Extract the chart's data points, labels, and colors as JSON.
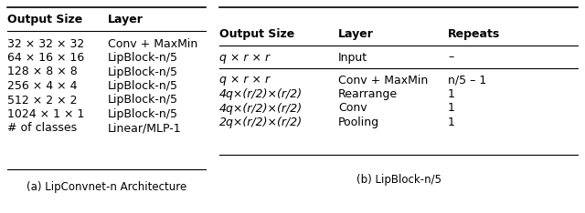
{
  "table_a": {
    "caption": "(a) LipConvnet-n Architecture",
    "headers": [
      "Output Size",
      "Layer"
    ],
    "rows": [
      [
        "32 × 32 × 32",
        "Conv + MaxMin"
      ],
      [
        "64 × 16 × 16",
        "LipBlock-n/5"
      ],
      [
        "128 × 8 × 8",
        "LipBlock-n/5"
      ],
      [
        "256 × 4 × 4",
        "LipBlock-n/5"
      ],
      [
        "512 × 2 × 2",
        "LipBlock-n/5"
      ],
      [
        "1024 × 1 × 1",
        "LipBlock-n/5"
      ],
      [
        "# of classes",
        "Linear/MLP-1"
      ]
    ]
  },
  "table_b": {
    "caption": "(b) LipBlock-n/5",
    "headers": [
      "Output Size",
      "Layer",
      "Repeats"
    ],
    "rows": [
      [
        "q × r × r",
        "Input",
        "–"
      ],
      [
        "q × r × r",
        "Conv + MaxMin",
        "n/5 – 1"
      ],
      [
        "4q×(r/2)×(r/2)",
        "Rearrange",
        "1"
      ],
      [
        "4q×(r/2)×(r/2)",
        "Conv",
        "1"
      ],
      [
        "2q×(r/2)×(r/2)",
        "Pooling",
        "1"
      ]
    ]
  },
  "bg_color": "#ffffff",
  "text_color": "#000000",
  "header_fontsize": 9.0,
  "row_fontsize": 9.0,
  "caption_fontsize": 8.5
}
